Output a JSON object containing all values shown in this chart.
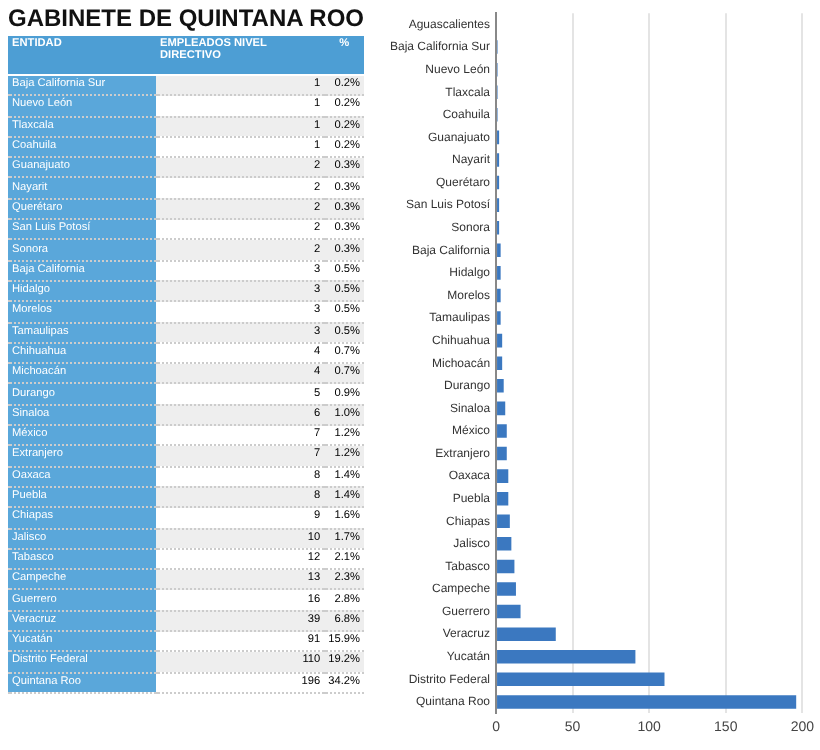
{
  "chart_data": [
    {
      "type": "other",
      "title": "GABINETE DE QUINTANA ROO",
      "ylabel": "ENTIDAD",
      "categories": [
        "Baja California Sur",
        "Nuevo León",
        "Tlaxcala",
        "Coahuila",
        "Guanajuato",
        "Nayarit",
        "Querétaro",
        "San Luis Potosí",
        "Sonora",
        "Baja California",
        "Hidalgo",
        "Morelos",
        "Tamaulipas",
        "Chihuahua",
        "Michoacán",
        "Durango",
        "Sinaloa",
        "México",
        "Extranjero",
        "Oaxaca",
        "Puebla",
        "Chiapas",
        "Jalisco",
        "Tabasco",
        "Campeche",
        "Guerrero",
        "Veracruz",
        "Yucatán",
        "Distrito Federal",
        "Quintana Roo"
      ],
      "series": [
        {
          "name": "EMPLEADOS NIVEL DIRECTIVO",
          "values": [
            1,
            1,
            1,
            1,
            2,
            2,
            2,
            2,
            2,
            3,
            3,
            3,
            3,
            4,
            4,
            5,
            6,
            7,
            7,
            8,
            8,
            9,
            10,
            12,
            13,
            16,
            39,
            91,
            110,
            196
          ],
          "value_labels": [
            "1",
            "1",
            "1",
            "1",
            "2",
            "2",
            "2",
            "2",
            "2",
            "3",
            "3",
            "3",
            "3",
            "4",
            "4",
            "5",
            "6",
            "7",
            "7",
            "8",
            "8",
            "9",
            "10",
            "12",
            "13",
            "16",
            "39",
            "91",
            "110",
            "196"
          ]
        },
        {
          "name": "%",
          "values": [
            0.2,
            0.2,
            0.2,
            0.2,
            0.3,
            0.3,
            0.3,
            0.3,
            0.3,
            0.5,
            0.5,
            0.5,
            0.5,
            0.7,
            0.7,
            0.9,
            1.0,
            1.2,
            1.2,
            1.4,
            1.4,
            1.6,
            1.7,
            2.1,
            2.3,
            2.8,
            6.8,
            15.9,
            19.2,
            34.2
          ],
          "value_labels": [
            "0.2%",
            "0.2%",
            "0.2%",
            "0.2%",
            "0.3%",
            "0.3%",
            "0.3%",
            "0.3%",
            "0.3%",
            "0.5%",
            "0.5%",
            "0.5%",
            "0.5%",
            "0.7%",
            "0.7%",
            "0.9%",
            "1.0%",
            "1.2%",
            "1.2%",
            "1.4%",
            "1.4%",
            "1.6%",
            "1.7%",
            "2.1%",
            "2.3%",
            "2.8%",
            "6.8%",
            "15.9%",
            "19.2%",
            "34.2%"
          ]
        }
      ]
    },
    {
      "type": "bar",
      "orientation": "horizontal",
      "color": "#3b78c0",
      "categories": [
        "Aguascalientes",
        "Baja California Sur",
        "Nuevo León",
        "Tlaxcala",
        "Coahuila",
        "Guanajuato",
        "Nayarit",
        "Querétaro",
        "San Luis Potosí",
        "Sonora",
        "Baja California",
        "Hidalgo",
        "Morelos",
        "Tamaulipas",
        "Chihuahua",
        "Michoacán",
        "Durango",
        "Sinaloa",
        "México",
        "Extranjero",
        "Oaxaca",
        "Puebla",
        "Chiapas",
        "Jalisco",
        "Tabasco",
        "Campeche",
        "Guerrero",
        "Veracruz",
        "Yucatán",
        "Distrito Federal",
        "Quintana Roo"
      ],
      "values": [
        0,
        1,
        1,
        1,
        1,
        2,
        2,
        2,
        2,
        2,
        3,
        3,
        3,
        3,
        4,
        4,
        5,
        6,
        7,
        7,
        8,
        8,
        9,
        10,
        12,
        13,
        16,
        39,
        91,
        110,
        196
      ],
      "xlim": [
        0,
        200
      ],
      "xticks": [
        0,
        50,
        100,
        150,
        200
      ],
      "grid": "x",
      "legend": false
    }
  ]
}
